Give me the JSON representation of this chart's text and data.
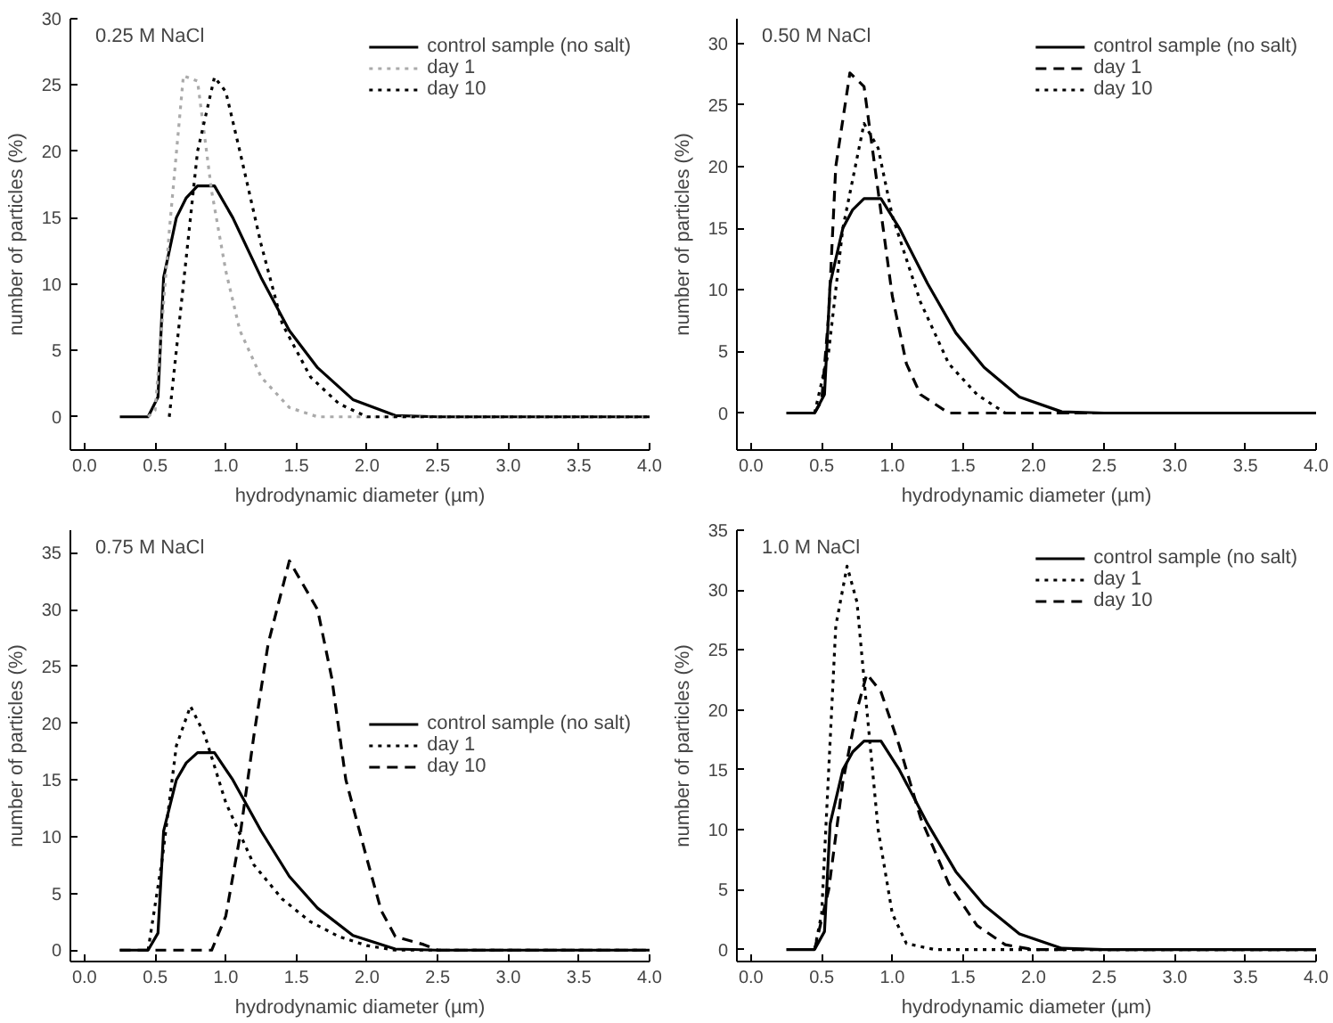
{
  "chart_data": [
    {
      "type": "line",
      "title": "0.25 M NaCl",
      "xlabel": "hydrodynamic diameter (µm)",
      "ylabel": "number of particles (%)",
      "legend": "top right",
      "grid": false,
      "xlim": [
        -0.1,
        4.0
      ],
      "xticks": [
        {
          "value": 0,
          "label": "0.0"
        },
        0.5,
        {
          "value": 1,
          "label": "1.0"
        },
        1.5,
        {
          "value": 2,
          "label": "2.0"
        },
        2.5,
        {
          "value": 3,
          "label": "3.0"
        },
        3.5,
        {
          "value": 4,
          "label": "4.0"
        }
      ],
      "ylim": [
        -2.5,
        30
      ],
      "yticks": [
        0,
        5,
        10,
        15,
        20,
        25,
        30
      ],
      "series": [
        {
          "name": "control sample (no salt)",
          "color": "#000000",
          "line_style": "solid",
          "x": [
            0.25,
            0.45,
            0.52,
            0.56,
            0.65,
            0.72,
            0.8,
            0.92,
            1.05,
            1.25,
            1.45,
            1.65,
            1.9,
            2.2,
            2.5,
            4.0
          ],
          "values": [
            0,
            0,
            1.5,
            10.5,
            15,
            16.5,
            17.4,
            17.4,
            15,
            10.5,
            6.5,
            3.7,
            1.3,
            0.1,
            0,
            0
          ]
        },
        {
          "name": "day 1",
          "color": "#aaaaaa",
          "line_style": "dotted",
          "x": [
            0.45,
            0.5,
            0.6,
            0.7,
            0.8,
            0.9,
            1.0,
            1.1,
            1.25,
            1.45,
            1.65,
            4.0
          ],
          "values": [
            0,
            0.5,
            14,
            25.7,
            25.3,
            17,
            11,
            6.5,
            3,
            0.7,
            0,
            0
          ]
        },
        {
          "name": "day 10",
          "color": "#000000",
          "line_style": "dotted",
          "x": [
            0.6,
            0.7,
            0.8,
            0.92,
            1.0,
            1.1,
            1.25,
            1.4,
            1.6,
            1.8,
            2.0,
            4.0
          ],
          "values": [
            0,
            10,
            20,
            25.6,
            24.5,
            20,
            13,
            7,
            3,
            1,
            0,
            0
          ]
        }
      ]
    },
    {
      "type": "line",
      "title": "0.50 M NaCl",
      "xlabel": "hydrodynamic diameter (µm)",
      "ylabel": "number of particles (%)",
      "legend": "top right",
      "grid": false,
      "xlim": [
        -0.1,
        4.0
      ],
      "xticks": [
        {
          "value": 0,
          "label": "0.0"
        },
        0.5,
        {
          "value": 1,
          "label": "1.0"
        },
        1.5,
        {
          "value": 2,
          "label": "2.0"
        },
        2.5,
        {
          "value": 3,
          "label": "3.0"
        },
        3.5,
        {
          "value": 4,
          "label": "4.0"
        }
      ],
      "ylim": [
        -3,
        32
      ],
      "yticks": [
        0,
        5,
        10,
        15,
        20,
        25,
        30
      ],
      "series": [
        {
          "name": "control sample (no salt)",
          "color": "#000000",
          "line_style": "solid",
          "x": [
            0.25,
            0.45,
            0.52,
            0.56,
            0.65,
            0.72,
            0.8,
            0.92,
            1.05,
            1.25,
            1.45,
            1.65,
            1.9,
            2.2,
            2.5,
            4.0
          ],
          "values": [
            0,
            0,
            1.5,
            10.5,
            15,
            16.5,
            17.4,
            17.4,
            15,
            10.5,
            6.5,
            3.7,
            1.3,
            0.1,
            0,
            0
          ]
        },
        {
          "name": "day 1",
          "color": "#000000",
          "line_style": "dashed",
          "x": [
            0.45,
            0.5,
            0.55,
            0.6,
            0.7,
            0.8,
            0.9,
            1.0,
            1.1,
            1.2,
            1.4,
            4.0
          ],
          "values": [
            0,
            1,
            8,
            20,
            27.6,
            26.5,
            18,
            9.5,
            4,
            1.5,
            0,
            0
          ]
        },
        {
          "name": "day 10",
          "color": "#000000",
          "line_style": "dotted",
          "x": [
            0.45,
            0.55,
            0.65,
            0.8,
            0.9,
            1.0,
            1.2,
            1.4,
            1.6,
            1.8,
            4.0
          ],
          "values": [
            0,
            5,
            15,
            23.5,
            21.5,
            16,
            9,
            4,
            1.5,
            0,
            0
          ]
        }
      ]
    },
    {
      "type": "line",
      "title": "0.75 M NaCl",
      "xlabel": "hydrodynamic diameter (µm)",
      "ylabel": "number of particles (%)",
      "legend": "right",
      "grid": false,
      "xlim": [
        -0.1,
        4.0
      ],
      "xticks": [
        {
          "value": 0,
          "label": "0.0"
        },
        0.5,
        {
          "value": 1,
          "label": "1.0"
        },
        1.5,
        {
          "value": 2,
          "label": "2.0"
        },
        2.5,
        {
          "value": 3,
          "label": "3.0"
        },
        3.5,
        {
          "value": 4,
          "label": "4.0"
        }
      ],
      "ylim": [
        -1,
        37
      ],
      "yticks": [
        0,
        5,
        10,
        15,
        20,
        25,
        30,
        35
      ],
      "series": [
        {
          "name": "control sample (no salt)",
          "color": "#000000",
          "line_style": "solid",
          "x": [
            0.25,
            0.45,
            0.52,
            0.56,
            0.65,
            0.72,
            0.8,
            0.92,
            1.05,
            1.25,
            1.45,
            1.65,
            1.9,
            2.2,
            2.5,
            4.0
          ],
          "values": [
            0,
            0,
            1.5,
            10.5,
            15,
            16.5,
            17.4,
            17.4,
            15,
            10.5,
            6.5,
            3.7,
            1.3,
            0.1,
            0,
            0
          ]
        },
        {
          "name": "day 1",
          "color": "#000000",
          "line_style": "dotted",
          "x": [
            0.45,
            0.55,
            0.65,
            0.75,
            0.85,
            1.0,
            1.2,
            1.4,
            1.6,
            1.8,
            2.0,
            2.2,
            4.0
          ],
          "values": [
            0,
            8,
            18,
            21.5,
            19,
            13,
            7.5,
            4.5,
            2.5,
            1.2,
            0.4,
            0,
            0
          ]
        },
        {
          "name": "day 10",
          "color": "#000000",
          "line_style": "dashed",
          "x": [
            0.25,
            0.9,
            1.0,
            1.1,
            1.2,
            1.3,
            1.45,
            1.65,
            1.75,
            1.85,
            2.0,
            2.1,
            2.2,
            2.4,
            2.5,
            4.0
          ],
          "values": [
            0,
            0,
            3,
            10,
            19,
            27,
            34.3,
            30,
            24,
            15,
            8,
            3.5,
            1.2,
            0.5,
            0,
            0
          ]
        }
      ]
    },
    {
      "type": "line",
      "title": "1.0 M NaCl",
      "xlabel": "hydrodynamic diameter (µm)",
      "ylabel": "number of particles (%)",
      "legend": "top right",
      "grid": false,
      "xlim": [
        -0.1,
        4.0
      ],
      "xticks": [
        {
          "value": 0,
          "label": "0.0"
        },
        0.5,
        {
          "value": 1,
          "label": "1.0"
        },
        1.5,
        {
          "value": 2,
          "label": "2.0"
        },
        2.5,
        {
          "value": 3,
          "label": "3.0"
        },
        3.5,
        {
          "value": 4,
          "label": "4.0"
        }
      ],
      "ylim": [
        -1,
        35
      ],
      "yticks": [
        0,
        5,
        10,
        15,
        20,
        25,
        30,
        35
      ],
      "series": [
        {
          "name": "control sample (no salt)",
          "color": "#000000",
          "line_style": "solid",
          "x": [
            0.25,
            0.45,
            0.52,
            0.56,
            0.65,
            0.72,
            0.8,
            0.92,
            1.05,
            1.25,
            1.45,
            1.65,
            1.9,
            2.2,
            2.5,
            4.0
          ],
          "values": [
            0,
            0,
            1.5,
            10.5,
            15,
            16.5,
            17.4,
            17.4,
            15,
            10.5,
            6.5,
            3.7,
            1.3,
            0.1,
            0,
            0
          ]
        },
        {
          "name": "day 1",
          "color": "#000000",
          "line_style": "dotted",
          "x": [
            0.45,
            0.5,
            0.55,
            0.6,
            0.68,
            0.75,
            0.82,
            0.9,
            1.0,
            1.1,
            1.3,
            4.0
          ],
          "values": [
            0,
            3,
            15,
            27,
            32,
            29,
            20,
            10,
            3,
            0.5,
            0,
            0
          ]
        },
        {
          "name": "day 10",
          "color": "#000000",
          "line_style": "dashed",
          "x": [
            0.45,
            0.55,
            0.65,
            0.75,
            0.82,
            0.92,
            1.05,
            1.2,
            1.4,
            1.6,
            1.8,
            2.0,
            4.0
          ],
          "values": [
            0,
            5,
            14,
            20,
            23,
            21.5,
            17,
            11,
            5.5,
            2,
            0.4,
            0,
            0
          ]
        }
      ]
    }
  ]
}
